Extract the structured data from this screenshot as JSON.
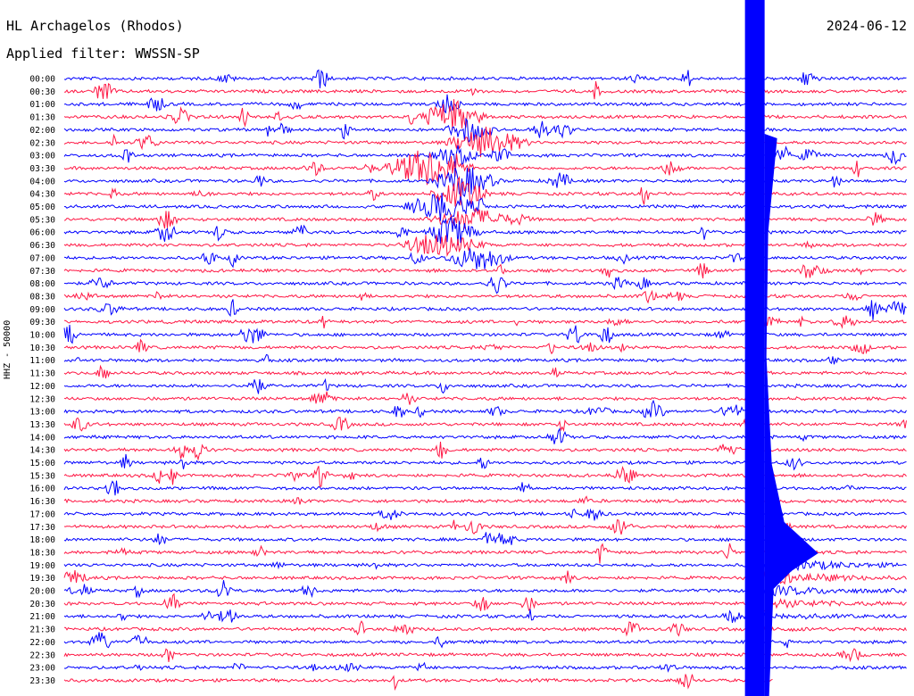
{
  "header": {
    "station": "HL Archagelos (Rhodos)",
    "date": "2024-06-12",
    "filter": "Applied filter: WWSSN-SP"
  },
  "chart_data": {
    "type": "line",
    "title": "HL Archagelos (Rhodos)",
    "ylabel": "HHZ - 50000",
    "categories": [
      "00:00",
      "00:30",
      "01:00",
      "01:30",
      "02:00",
      "02:30",
      "03:00",
      "03:30",
      "04:00",
      "04:30",
      "05:00",
      "05:30",
      "06:00",
      "06:30",
      "07:00",
      "07:30",
      "08:00",
      "08:30",
      "09:00",
      "09:30",
      "10:00",
      "10:30",
      "11:00",
      "11:30",
      "12:00",
      "12:30",
      "13:00",
      "13:30",
      "14:00",
      "14:30",
      "15:00",
      "15:30",
      "16:00",
      "16:30",
      "17:00",
      "17:30",
      "18:00",
      "18:30",
      "19:00",
      "19:30",
      "20:00",
      "20:30",
      "21:00",
      "21:30",
      "22:00",
      "22:30",
      "23:00",
      "23:30"
    ],
    "colors": [
      "#0000ff",
      "#ff1744"
    ],
    "major_event_time_min": 24.3,
    "trace_minutes": 30
  }
}
